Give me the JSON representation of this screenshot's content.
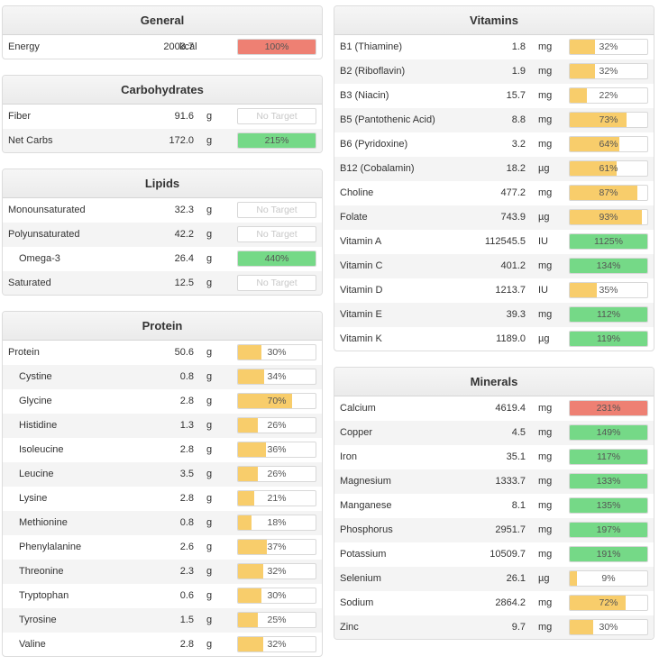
{
  "colors": {
    "yellow": "#f8cd6b",
    "green": "#75d987",
    "red": "#ee8073"
  },
  "sections": [
    {
      "id": "general",
      "title": "General",
      "col": "left",
      "rows": [
        {
          "name": "Energy",
          "value": "2003.7",
          "unit": "kcal",
          "pct": "100%",
          "fill_pct": 100,
          "color": "red"
        }
      ]
    },
    {
      "id": "carbohydrates",
      "title": "Carbohydrates",
      "col": "left",
      "rows": [
        {
          "name": "Fiber",
          "value": "91.6",
          "unit": "g",
          "pct": "No Target",
          "fill_pct": 0,
          "color": "none"
        },
        {
          "name": "Net Carbs",
          "value": "172.0",
          "unit": "g",
          "pct": "215%",
          "fill_pct": 100,
          "color": "green"
        }
      ]
    },
    {
      "id": "lipids",
      "title": "Lipids",
      "col": "left",
      "rows": [
        {
          "name": "Monounsaturated",
          "value": "32.3",
          "unit": "g",
          "pct": "No Target",
          "fill_pct": 0,
          "color": "none"
        },
        {
          "name": "Polyunsaturated",
          "value": "42.2",
          "unit": "g",
          "pct": "No Target",
          "fill_pct": 0,
          "color": "none"
        },
        {
          "name": "Omega-3",
          "value": "26.4",
          "unit": "g",
          "pct": "440%",
          "fill_pct": 100,
          "color": "green",
          "indent": true
        },
        {
          "name": "Saturated",
          "value": "12.5",
          "unit": "g",
          "pct": "No Target",
          "fill_pct": 0,
          "color": "none"
        }
      ]
    },
    {
      "id": "protein",
      "title": "Protein",
      "col": "left",
      "rows": [
        {
          "name": "Protein",
          "value": "50.6",
          "unit": "g",
          "pct": "30%",
          "fill_pct": 30,
          "color": "yellow"
        },
        {
          "name": "Cystine",
          "value": "0.8",
          "unit": "g",
          "pct": "34%",
          "fill_pct": 34,
          "color": "yellow",
          "indent": true
        },
        {
          "name": "Glycine",
          "value": "2.8",
          "unit": "g",
          "pct": "70%",
          "fill_pct": 70,
          "color": "yellow",
          "indent": true
        },
        {
          "name": "Histidine",
          "value": "1.3",
          "unit": "g",
          "pct": "26%",
          "fill_pct": 26,
          "color": "yellow",
          "indent": true
        },
        {
          "name": "Isoleucine",
          "value": "2.8",
          "unit": "g",
          "pct": "36%",
          "fill_pct": 36,
          "color": "yellow",
          "indent": true
        },
        {
          "name": "Leucine",
          "value": "3.5",
          "unit": "g",
          "pct": "26%",
          "fill_pct": 26,
          "color": "yellow",
          "indent": true
        },
        {
          "name": "Lysine",
          "value": "2.8",
          "unit": "g",
          "pct": "21%",
          "fill_pct": 21,
          "color": "yellow",
          "indent": true
        },
        {
          "name": "Methionine",
          "value": "0.8",
          "unit": "g",
          "pct": "18%",
          "fill_pct": 18,
          "color": "yellow",
          "indent": true
        },
        {
          "name": "Phenylalanine",
          "value": "2.6",
          "unit": "g",
          "pct": "37%",
          "fill_pct": 37,
          "color": "yellow",
          "indent": true
        },
        {
          "name": "Threonine",
          "value": "2.3",
          "unit": "g",
          "pct": "32%",
          "fill_pct": 32,
          "color": "yellow",
          "indent": true
        },
        {
          "name": "Tryptophan",
          "value": "0.6",
          "unit": "g",
          "pct": "30%",
          "fill_pct": 30,
          "color": "yellow",
          "indent": true
        },
        {
          "name": "Tyrosine",
          "value": "1.5",
          "unit": "g",
          "pct": "25%",
          "fill_pct": 25,
          "color": "yellow",
          "indent": true
        },
        {
          "name": "Valine",
          "value": "2.8",
          "unit": "g",
          "pct": "32%",
          "fill_pct": 32,
          "color": "yellow",
          "indent": true
        }
      ]
    },
    {
      "id": "vitamins",
      "title": "Vitamins",
      "col": "right",
      "rows": [
        {
          "name": "B1 (Thiamine)",
          "value": "1.8",
          "unit": "mg",
          "pct": "32%",
          "fill_pct": 32,
          "color": "yellow"
        },
        {
          "name": "B2 (Riboflavin)",
          "value": "1.9",
          "unit": "mg",
          "pct": "32%",
          "fill_pct": 32,
          "color": "yellow"
        },
        {
          "name": "B3 (Niacin)",
          "value": "15.7",
          "unit": "mg",
          "pct": "22%",
          "fill_pct": 22,
          "color": "yellow"
        },
        {
          "name": "B5 (Pantothenic Acid)",
          "value": "8.8",
          "unit": "mg",
          "pct": "73%",
          "fill_pct": 73,
          "color": "yellow"
        },
        {
          "name": "B6 (Pyridoxine)",
          "value": "3.2",
          "unit": "mg",
          "pct": "64%",
          "fill_pct": 64,
          "color": "yellow"
        },
        {
          "name": "B12 (Cobalamin)",
          "value": "18.2",
          "unit": "µg",
          "pct": "61%",
          "fill_pct": 61,
          "color": "yellow"
        },
        {
          "name": "Choline",
          "value": "477.2",
          "unit": "mg",
          "pct": "87%",
          "fill_pct": 87,
          "color": "yellow"
        },
        {
          "name": "Folate",
          "value": "743.9",
          "unit": "µg",
          "pct": "93%",
          "fill_pct": 93,
          "color": "yellow"
        },
        {
          "name": "Vitamin A",
          "value": "112545.5",
          "unit": "IU",
          "pct": "1125%",
          "fill_pct": 100,
          "color": "green"
        },
        {
          "name": "Vitamin C",
          "value": "401.2",
          "unit": "mg",
          "pct": "134%",
          "fill_pct": 100,
          "color": "green"
        },
        {
          "name": "Vitamin D",
          "value": "1213.7",
          "unit": "IU",
          "pct": "35%",
          "fill_pct": 35,
          "color": "yellow"
        },
        {
          "name": "Vitamin E",
          "value": "39.3",
          "unit": "mg",
          "pct": "112%",
          "fill_pct": 100,
          "color": "green"
        },
        {
          "name": "Vitamin K",
          "value": "1189.0",
          "unit": "µg",
          "pct": "119%",
          "fill_pct": 100,
          "color": "green"
        }
      ]
    },
    {
      "id": "minerals",
      "title": "Minerals",
      "col": "right",
      "rows": [
        {
          "name": "Calcium",
          "value": "4619.4",
          "unit": "mg",
          "pct": "231%",
          "fill_pct": 100,
          "color": "red"
        },
        {
          "name": "Copper",
          "value": "4.5",
          "unit": "mg",
          "pct": "149%",
          "fill_pct": 100,
          "color": "green"
        },
        {
          "name": "Iron",
          "value": "35.1",
          "unit": "mg",
          "pct": "117%",
          "fill_pct": 100,
          "color": "green"
        },
        {
          "name": "Magnesium",
          "value": "1333.7",
          "unit": "mg",
          "pct": "133%",
          "fill_pct": 100,
          "color": "green"
        },
        {
          "name": "Manganese",
          "value": "8.1",
          "unit": "mg",
          "pct": "135%",
          "fill_pct": 100,
          "color": "green"
        },
        {
          "name": "Phosphorus",
          "value": "2951.7",
          "unit": "mg",
          "pct": "197%",
          "fill_pct": 100,
          "color": "green"
        },
        {
          "name": "Potassium",
          "value": "10509.7",
          "unit": "mg",
          "pct": "191%",
          "fill_pct": 100,
          "color": "green"
        },
        {
          "name": "Selenium",
          "value": "26.1",
          "unit": "µg",
          "pct": "9%",
          "fill_pct": 9,
          "color": "yellow"
        },
        {
          "name": "Sodium",
          "value": "2864.2",
          "unit": "mg",
          "pct": "72%",
          "fill_pct": 72,
          "color": "yellow"
        },
        {
          "name": "Zinc",
          "value": "9.7",
          "unit": "mg",
          "pct": "30%",
          "fill_pct": 30,
          "color": "yellow"
        }
      ]
    }
  ]
}
